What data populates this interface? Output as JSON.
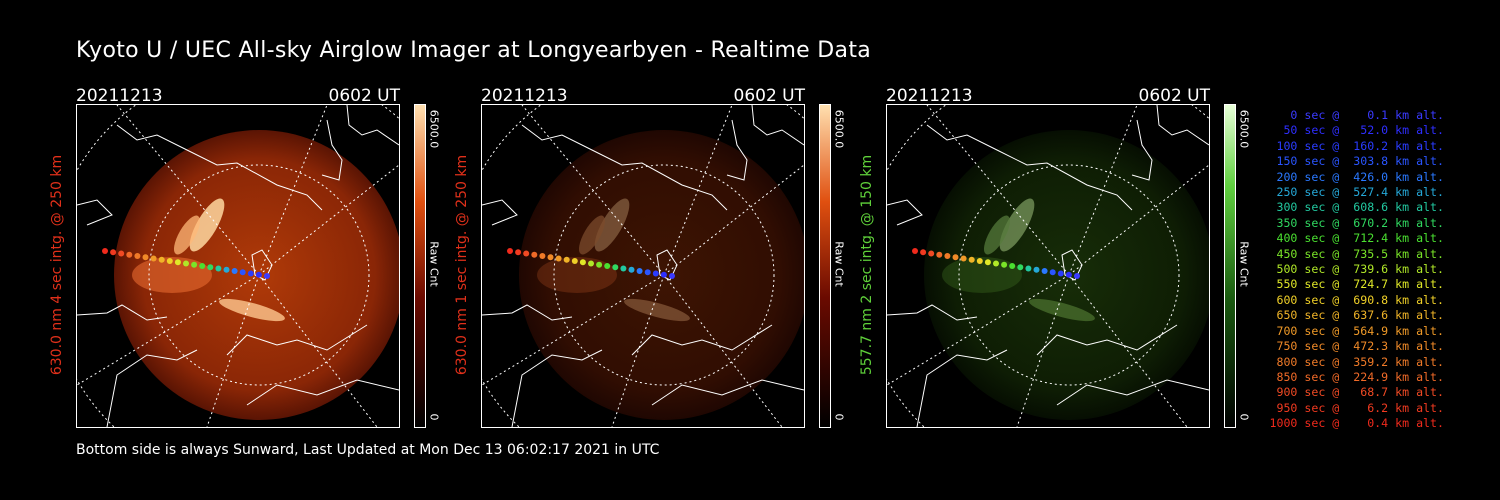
{
  "title": "Kyoto U / UEC All-sky Airglow Imager at Longyearbyen - Realtime Data",
  "panels": [
    {
      "date": "20211213",
      "time": "0602 UT",
      "ylabel": "630.0 nm 4 sec intg. @ 250 km",
      "ylabel_color": "#e0301a",
      "cb_max": "6500.0",
      "cb_min": "0",
      "cb_label": "Raw Cnt",
      "cmap": "red",
      "intensity": 1.0
    },
    {
      "date": "20211213",
      "time": "0602 UT",
      "ylabel": "630.0 nm 1 sec intg. @ 250 km",
      "ylabel_color": "#e0301a",
      "cb_max": "6500.0",
      "cb_min": "0",
      "cb_label": "Raw Cnt",
      "cmap": "red",
      "intensity": 0.35
    },
    {
      "date": "20211213",
      "time": "0602 UT",
      "ylabel": "557.7 nm 2 sec intg. @ 150 km",
      "ylabel_color": "#5fd03a",
      "cb_max": "6500.0",
      "cb_min": "0",
      "cb_label": "Raw Cnt",
      "cmap": "green",
      "intensity": 0.5
    }
  ],
  "footer": "Bottom side is always Sunward, Last Updated at Mon Dec 13 06:02:17 2021 in UTC",
  "legend": [
    {
      "text": "   0 sec @    0.1 km alt.",
      "color": "#3a3aff"
    },
    {
      "text": "  50 sec @   52.0 km alt.",
      "color": "#2e2eff"
    },
    {
      "text": " 100 sec @  160.2 km alt.",
      "color": "#2a3cff"
    },
    {
      "text": " 150 sec @  303.8 km alt.",
      "color": "#2a55ff"
    },
    {
      "text": " 200 sec @  426.0 km alt.",
      "color": "#2a78ff"
    },
    {
      "text": " 250 sec @  527.4 km alt.",
      "color": "#25a8d8"
    },
    {
      "text": " 300 sec @  608.6 km alt.",
      "color": "#22c8a0"
    },
    {
      "text": " 350 sec @  670.2 km alt.",
      "color": "#30d860"
    },
    {
      "text": " 400 sec @  712.4 km alt.",
      "color": "#4ae030"
    },
    {
      "text": " 450 sec @  735.5 km alt.",
      "color": "#7ae428"
    },
    {
      "text": " 500 sec @  739.6 km alt.",
      "color": "#b0e828"
    },
    {
      "text": " 550 sec @  724.7 km alt.",
      "color": "#e0e828"
    },
    {
      "text": " 600 sec @  690.8 km alt.",
      "color": "#f0d028"
    },
    {
      "text": " 650 sec @  637.6 km alt.",
      "color": "#f0b428"
    },
    {
      "text": " 700 sec @  564.9 km alt.",
      "color": "#f09a28"
    },
    {
      "text": " 750 sec @  472.3 km alt.",
      "color": "#f08a28"
    },
    {
      "text": " 800 sec @  359.2 km alt.",
      "color": "#f07a28"
    },
    {
      "text": " 850 sec @  224.9 km alt.",
      "color": "#f06a28"
    },
    {
      "text": " 900 sec @   68.7 km alt.",
      "color": "#f04a24"
    },
    {
      "text": " 950 sec @    6.2 km alt.",
      "color": "#f03a20"
    },
    {
      "text": "1000 sec @    0.4 km alt.",
      "color": "#f02a1c"
    }
  ]
}
